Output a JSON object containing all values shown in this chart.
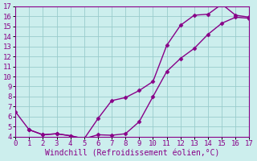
{
  "bg_color": "#cceeed",
  "line_color": "#880088",
  "marker": "D",
  "markersize": 2.5,
  "linewidth": 1.0,
  "xlabel": "Windchill (Refroidissement éolien,°C)",
  "xlabel_fontsize": 7,
  "ytick_fontsize": 6.5,
  "xtick_fontsize": 6.5,
  "ylim": [
    4,
    17
  ],
  "xlim": [
    0,
    17
  ],
  "grid_color": "#99cccc",
  "upper_x": [
    0,
    1,
    2,
    3,
    4,
    5,
    6,
    7,
    8,
    9,
    10,
    11,
    12,
    13,
    14,
    15,
    16,
    17
  ],
  "upper_y": [
    6.5,
    4.7,
    4.2,
    4.3,
    4.1,
    3.8,
    5.8,
    7.6,
    7.9,
    8.6,
    9.5,
    13.1,
    15.1,
    16.1,
    16.2,
    17.2,
    16.1,
    15.9
  ],
  "lower_x": [
    1,
    2,
    3,
    4,
    5,
    6,
    7,
    8,
    9,
    10,
    11,
    12,
    13,
    14,
    15,
    16,
    17
  ],
  "lower_y": [
    4.7,
    4.2,
    4.3,
    4.1,
    3.8,
    4.2,
    4.15,
    4.3,
    5.5,
    8.0,
    10.5,
    11.8,
    12.8,
    14.2,
    15.3,
    15.9,
    15.8
  ]
}
